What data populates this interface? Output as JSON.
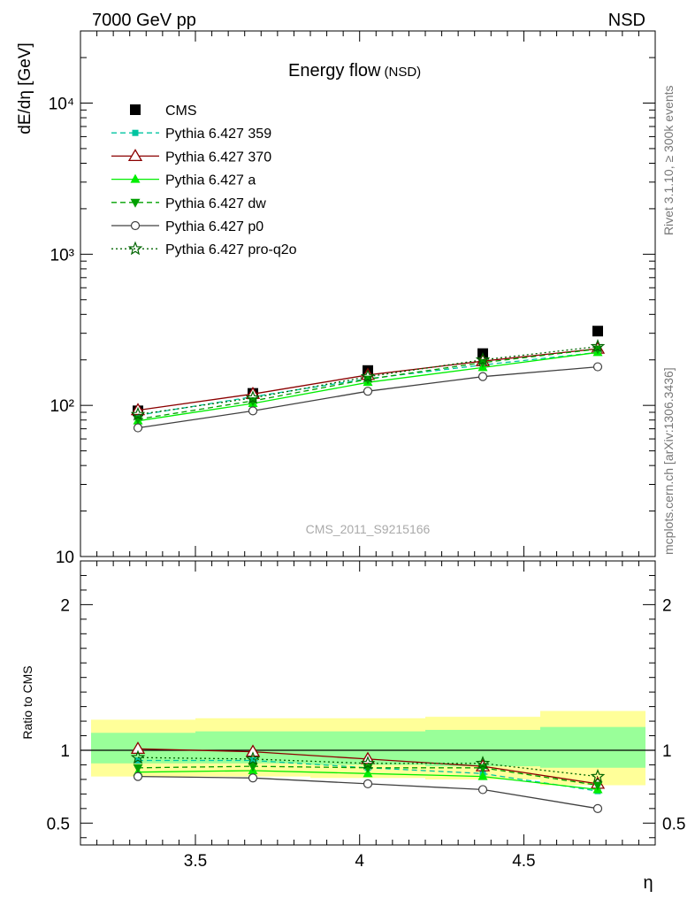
{
  "header": {
    "energy_label": "7000 GeV pp",
    "process_label": "NSD"
  },
  "side_labels": {
    "rivet": "Rivet 3.1.10, ≥ 300k events",
    "source": "mcplots.cern.ch [arXiv:1306.3436]"
  },
  "watermark": "CMS_2011_S9215166",
  "chart_data": [
    {
      "type": "line",
      "scale": "log",
      "title": "Energy flow",
      "subtitle": "(NSD)",
      "ylabel": "dE/dη [GeV]",
      "xlabel": "η",
      "xlim": [
        3.15,
        4.9
      ],
      "ylim": [
        10,
        30000
      ],
      "xticks": [
        3.5,
        4,
        4.5
      ],
      "xtick_labels": [
        "3.5",
        "4",
        "4.5"
      ],
      "yticks": [
        10,
        100,
        1000,
        10000
      ],
      "ytick_labels": [
        "10",
        "10²",
        "10³",
        "10⁴"
      ],
      "x": [
        3.325,
        3.675,
        4.025,
        4.375,
        4.725
      ],
      "legend_position": "top-left",
      "series": [
        {
          "name": "CMS",
          "marker": "square",
          "color": "#000000",
          "values": [
            92,
            120,
            170,
            220,
            310
          ]
        },
        {
          "name": "Pythia 6.427 359",
          "marker": "small-square",
          "color": "#00c4a0",
          "dash": "dashed",
          "values": [
            86,
            114,
            150,
            185,
            224
          ]
        },
        {
          "name": "Pythia 6.427 370",
          "marker": "open-triangle",
          "color": "#8b0000",
          "dash": "solid",
          "values": [
            93,
            119,
            159,
            196,
            237
          ]
        },
        {
          "name": "Pythia 6.427 a",
          "marker": "triangle",
          "color": "#00ee00",
          "dash": "solid",
          "values": [
            79,
            103,
            142,
            178,
            224
          ]
        },
        {
          "name": "Pythia 6.427 dw",
          "marker": "down-triangle",
          "color": "#00a000",
          "dash": "dashed",
          "values": [
            81,
            107,
            149,
            192,
            236
          ]
        },
        {
          "name": "Pythia 6.427 p0",
          "marker": "open-circle",
          "color": "#404040",
          "dash": "solid",
          "values": [
            71,
            92,
            124,
            155,
            180
          ]
        },
        {
          "name": "Pythia 6.427 pro-q2o",
          "marker": "star",
          "color": "#006400",
          "dash": "dotted",
          "values": [
            87,
            112,
            155,
            200,
            245
          ]
        }
      ]
    },
    {
      "type": "line",
      "scale": "linear",
      "ylabel": "Ratio to CMS",
      "xlabel": "η",
      "xlim": [
        3.15,
        4.9
      ],
      "ylim": [
        0.35,
        2.3
      ],
      "yticks": [
        0.5,
        1,
        2
      ],
      "ytick_labels": [
        "0.5",
        "1",
        "2"
      ],
      "reference_line": 1,
      "bins": [
        [
          3.15,
          3.5
        ],
        [
          3.5,
          3.85
        ],
        [
          3.85,
          4.2
        ],
        [
          4.2,
          4.55
        ],
        [
          4.55,
          4.9
        ]
      ],
      "band_inner": [
        [
          0.91,
          1.12
        ],
        [
          0.91,
          1.13
        ],
        [
          0.9,
          1.13
        ],
        [
          0.89,
          1.14
        ],
        [
          0.88,
          1.16
        ]
      ],
      "band_outer": [
        [
          0.82,
          1.21
        ],
        [
          0.82,
          1.22
        ],
        [
          0.81,
          1.22
        ],
        [
          0.8,
          1.23
        ],
        [
          0.76,
          1.27
        ]
      ],
      "x": [
        3.325,
        3.675,
        4.025,
        4.375,
        4.725
      ],
      "series": [
        {
          "name": "Pythia 6.427 359",
          "values": [
            0.93,
            0.93,
            0.88,
            0.84,
            0.72
          ]
        },
        {
          "name": "Pythia 6.427 370",
          "values": [
            1.01,
            0.99,
            0.94,
            0.89,
            0.77
          ]
        },
        {
          "name": "Pythia 6.427 a",
          "values": [
            0.85,
            0.86,
            0.84,
            0.82,
            0.73
          ]
        },
        {
          "name": "Pythia 6.427 dw",
          "values": [
            0.88,
            0.89,
            0.88,
            0.88,
            0.76
          ]
        },
        {
          "name": "Pythia 6.427 p0",
          "values": [
            0.82,
            0.81,
            0.77,
            0.73,
            0.6
          ]
        },
        {
          "name": "Pythia 6.427 pro-q2o",
          "values": [
            0.95,
            0.94,
            0.91,
            0.91,
            0.82
          ]
        }
      ]
    }
  ]
}
